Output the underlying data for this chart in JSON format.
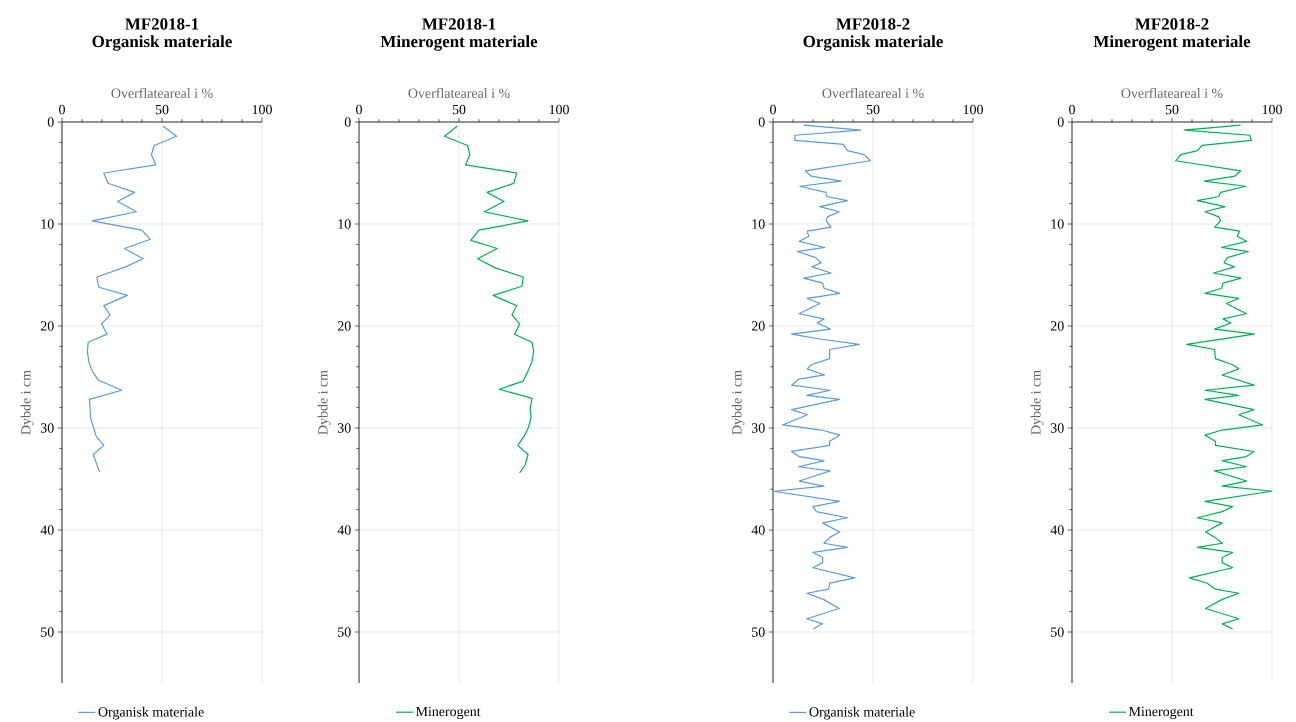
{
  "chart_data": [
    {
      "type": "line",
      "title": "MF2018-1",
      "subtitle": "Organisk materiale",
      "xlabel": "Overflateareal i %",
      "ylabel": "Dybde i cm",
      "xlim": [
        0,
        100
      ],
      "ylim": [
        55,
        0
      ],
      "xticks": [
        0,
        50,
        100
      ],
      "yticks": [
        0,
        10,
        20,
        30,
        40,
        50
      ],
      "grid": true,
      "legend": "bottom",
      "series": [
        {
          "name": "Organisk materiale",
          "color": "#5b9bd5",
          "x": [
            50.4,
            57.3,
            46.1,
            44.7,
            46.9,
            20.9,
            23.0,
            36.3,
            27.8,
            37.2,
            15.1,
            39.9,
            44.2,
            31.3,
            40.5,
            31.8,
            17.4,
            18.4,
            32.7,
            20.9,
            24.0,
            19.8,
            22.6,
            13.1,
            12.7,
            13.4,
            15.1,
            18.1,
            29.8,
            13.7,
            14.4,
            17.1,
            20.9,
            15.6,
            18.8
          ],
          "values": [
            0.4,
            1.4,
            2.3,
            3.2,
            4.2,
            5.0,
            6.0,
            6.9,
            7.8,
            8.8,
            9.7,
            10.6,
            11.5,
            12.4,
            13.4,
            14.2,
            15.2,
            16.2,
            17.0,
            18.0,
            18.9,
            19.8,
            20.8,
            21.6,
            22.5,
            23.5,
            24.4,
            25.3,
            26.3,
            27.2,
            29.1,
            30.8,
            31.7,
            32.6,
            34.3
          ]
        }
      ]
    },
    {
      "type": "line",
      "title": "MF2018-1",
      "subtitle": "Minerogent materiale",
      "xlabel": "Overflateareal i %",
      "ylabel": "Dybde i cm",
      "xlim": [
        0,
        100
      ],
      "ylim": [
        55,
        0
      ],
      "xticks": [
        0,
        50,
        100
      ],
      "yticks": [
        0,
        10,
        20,
        30,
        40,
        50
      ],
      "grid": true,
      "legend": "bottom",
      "series": [
        {
          "name": "Minerogent",
          "color": "#00b050",
          "x": [
            49.2,
            42.7,
            54.3,
            55.4,
            53.3,
            78.8,
            77.5,
            64.0,
            72.5,
            62.6,
            84.5,
            59.9,
            55.9,
            69.1,
            59.4,
            68.1,
            82.1,
            81.5,
            67.1,
            78.8,
            76.5,
            80.3,
            77.8,
            86.5,
            87.3,
            86.5,
            84.5,
            82.1,
            70.1,
            86.5,
            85.6,
            86.0,
            84.8,
            82.6,
            79.4,
            84.5,
            83.1,
            80.3
          ],
          "values": [
            0.4,
            1.4,
            2.3,
            3.2,
            4.2,
            5.0,
            6.0,
            6.9,
            7.8,
            8.8,
            9.7,
            10.6,
            11.6,
            12.4,
            13.4,
            14.3,
            15.2,
            16.1,
            17.0,
            18.0,
            18.9,
            19.8,
            20.8,
            21.6,
            22.5,
            23.5,
            24.4,
            25.4,
            26.2,
            27.1,
            28.1,
            29.0,
            29.9,
            30.8,
            31.7,
            32.6,
            33.6,
            34.4
          ]
        }
      ]
    },
    {
      "type": "line",
      "title": "MF2018-2",
      "subtitle": "Organisk materiale",
      "xlabel": "Overflateareal i %",
      "ylabel": "Dybde i cm",
      "xlim": [
        0,
        100
      ],
      "ylim": [
        55,
        0
      ],
      "xticks": [
        0,
        50,
        100
      ],
      "yticks": [
        0,
        10,
        20,
        30,
        40,
        50
      ],
      "grid": true,
      "legend": "bottom",
      "series": [
        {
          "name": "Organisk materiale",
          "color": "#5b9bd5",
          "x": [
            15.3,
            43.8,
            10.9,
            11.0,
            35.2,
            37.2,
            45.5,
            48.6,
            16.2,
            19.1,
            34.1,
            13.4,
            26.4,
            26.9,
            37.2,
            23.4,
            33.1,
            27.2,
            26.6,
            29.0,
            17.1,
            17.9,
            13.1,
            25.9,
            12.2,
            21.4,
            24.1,
            19.5,
            29.0,
            15.3,
            24.8,
            25.5,
            33.3,
            17.1,
            23.4,
            13.1,
            25.5,
            22.1,
            28.6,
            9.3,
            24.3,
            43.1,
            28.3,
            28.3,
            19.1,
            17.1,
            25.7,
            13.1,
            9.3,
            28.6,
            16.9,
            33.3,
            9.3,
            17.1,
            4.8,
            24.3,
            33.3,
            28.3,
            28.3,
            9.3,
            13.1,
            25.5,
            12.8,
            28.6,
            13.1,
            25.5,
            0.3,
            33.3,
            20.0,
            21.7,
            37.2,
            24.8,
            33.3,
            28.6,
            25.5,
            37.2,
            20.0,
            24.8,
            24.8,
            20.0,
            41.0,
            28.3,
            27.8,
            16.9,
            25.2,
            33.1,
            16.9,
            24.8,
            20.0
          ],
          "values": [
            0.3,
            0.8,
            1.3,
            1.8,
            2.2,
            2.8,
            3.2,
            3.8,
            4.8,
            5.3,
            5.8,
            6.3,
            6.9,
            7.3,
            7.7,
            8.3,
            8.8,
            9.3,
            9.7,
            10.3,
            10.7,
            11.2,
            11.7,
            12.3,
            12.7,
            13.3,
            13.8,
            14.2,
            14.8,
            15.3,
            15.8,
            16.3,
            16.8,
            17.3,
            17.8,
            18.8,
            19.3,
            19.7,
            20.3,
            20.8,
            21.3,
            21.8,
            22.3,
            23.2,
            23.8,
            24.2,
            24.8,
            25.2,
            25.8,
            26.3,
            26.8,
            27.2,
            28.2,
            28.7,
            29.7,
            30.2,
            30.7,
            31.3,
            31.7,
            32.3,
            32.8,
            33.2,
            33.8,
            34.2,
            35.2,
            35.7,
            36.2,
            37.2,
            37.7,
            38.2,
            38.8,
            39.3,
            40.2,
            40.7,
            41.3,
            41.7,
            42.2,
            42.7,
            43.2,
            43.7,
            44.7,
            45.2,
            45.8,
            46.2,
            46.8,
            47.7,
            48.7,
            49.2,
            49.7
          ]
        }
      ]
    },
    {
      "type": "line",
      "title": "MF2018-2",
      "subtitle": "Minerogent materiale",
      "xlabel": "Overflateareal i %",
      "ylabel": "Dybde i cm",
      "xlim": [
        0,
        100
      ],
      "ylim": [
        55,
        0
      ],
      "xticks": [
        0,
        50,
        100
      ],
      "yticks": [
        0,
        10,
        20,
        30,
        40,
        50
      ],
      "grid": true,
      "legend": "bottom",
      "series": [
        {
          "name": "Minerogent",
          "color": "#00b050",
          "x": [
            84.3,
            56.1,
            88.9,
            89.6,
            65.1,
            62.7,
            54.4,
            51.8,
            84.3,
            81.5,
            66.1,
            86.9,
            74.3,
            73.4,
            62.7,
            76.5,
            66.5,
            73.4,
            74.3,
            71.3,
            83.8,
            82.6,
            87.2,
            74.8,
            88.1,
            77.7,
            76.0,
            81.2,
            70.8,
            84.5,
            75.5,
            74.8,
            66.5,
            83.4,
            77.2,
            87.2,
            75.5,
            79.4,
            71.3,
            91.2,
            57.3,
            71.3,
            71.7,
            80.3,
            83.4,
            75.1,
            91.0,
            66.5,
            83.4,
            66.5,
            91.0,
            83.4,
            95.3,
            75.1,
            66.5,
            71.7,
            71.7,
            91.0,
            87.2,
            75.1,
            87.2,
            71.3,
            87.2,
            75.1,
            100,
            66.5,
            80.3,
            75.1,
            62.7,
            75.1,
            66.8,
            71.3,
            75.1,
            62.7,
            80.3,
            75.1,
            75.1,
            80.3,
            58.7,
            67.4,
            71.7,
            83.4,
            75.1,
            66.8,
            83.4,
            75.1,
            80.3
          ],
          "values": [
            0.3,
            0.8,
            1.3,
            1.8,
            2.3,
            2.8,
            3.2,
            3.8,
            4.8,
            5.3,
            5.8,
            6.3,
            6.9,
            7.3,
            7.7,
            8.3,
            8.8,
            9.3,
            9.7,
            10.3,
            10.7,
            11.2,
            11.7,
            12.3,
            12.7,
            13.3,
            13.8,
            14.2,
            14.8,
            15.3,
            15.8,
            16.3,
            16.8,
            17.3,
            17.8,
            18.8,
            19.3,
            19.7,
            20.3,
            20.8,
            21.8,
            22.3,
            23.2,
            23.8,
            24.2,
            24.8,
            25.8,
            26.3,
            26.8,
            27.2,
            28.2,
            28.7,
            29.7,
            30.2,
            30.7,
            31.3,
            31.7,
            32.3,
            32.8,
            33.2,
            33.8,
            34.2,
            35.2,
            35.7,
            36.2,
            37.2,
            37.7,
            38.2,
            38.8,
            39.3,
            40.2,
            40.7,
            41.3,
            41.7,
            42.2,
            42.7,
            43.2,
            43.7,
            44.7,
            45.2,
            45.8,
            46.2,
            46.8,
            47.7,
            48.7,
            49.2,
            49.7
          ]
        }
      ]
    }
  ]
}
